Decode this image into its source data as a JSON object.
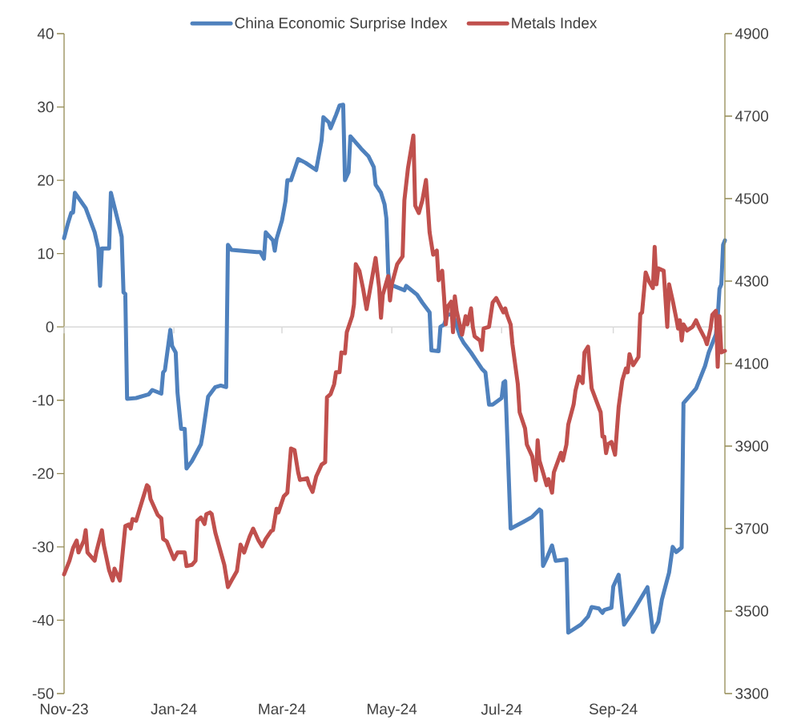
{
  "chart_data": {
    "type": "line",
    "legend": "top",
    "xlim": [
      "2023-11-01",
      "2024-11-02"
    ],
    "xticks": [
      {
        "value": "2023-11-01",
        "label": "Nov-23"
      },
      {
        "value": "2024-01-01",
        "label": "Jan-24"
      },
      {
        "value": "2024-03-01",
        "label": "Mar-24"
      },
      {
        "value": "2024-05-01",
        "label": "May-24"
      },
      {
        "value": "2024-07-01",
        "label": "Jul-24"
      },
      {
        "value": "2024-09-01",
        "label": "Sep-24"
      }
    ],
    "ylim": [
      -50,
      40
    ],
    "yticks": [
      -50,
      -40,
      -30,
      -20,
      -10,
      0,
      10,
      20,
      30,
      40
    ],
    "y2lim": [
      3300,
      4900
    ],
    "y2ticks": [
      3300,
      3500,
      3700,
      3900,
      4100,
      4300,
      4500,
      4700,
      4900
    ],
    "series": [
      {
        "name": "China Economic Surprise Index",
        "color": "#4f81bd",
        "x": [
          "2023-11-01",
          "2023-11-03",
          "2023-11-05",
          "2023-11-06",
          "2023-11-07",
          "2023-11-13",
          "2023-11-18",
          "2023-11-20",
          "2023-11-21",
          "2023-11-22",
          "2023-11-26",
          "2023-11-27",
          "2023-12-02",
          "2023-12-03",
          "2023-12-04",
          "2023-12-05",
          "2023-12-06",
          "2023-12-11",
          "2023-12-18",
          "2023-12-20",
          "2023-12-25",
          "2023-12-26",
          "2023-12-27",
          "2023-12-30",
          "2023-12-31",
          "2024-01-02",
          "2024-01-03",
          "2024-01-05",
          "2024-01-07",
          "2024-01-08",
          "2024-01-11",
          "2024-01-16",
          "2024-01-17",
          "2024-01-20",
          "2024-01-24",
          "2024-01-27",
          "2024-01-30",
          "2024-01-31",
          "2024-02-02",
          "2024-02-07",
          "2024-02-16",
          "2024-02-18",
          "2024-02-20",
          "2024-02-21",
          "2024-02-25",
          "2024-02-26",
          "2024-02-27",
          "2024-03-01",
          "2024-03-03",
          "2024-03-04",
          "2024-03-06",
          "2024-03-10",
          "2024-03-14",
          "2024-03-20",
          "2024-03-23",
          "2024-03-24",
          "2024-03-27",
          "2024-03-28",
          "2024-03-31",
          "2024-04-02",
          "2024-04-04",
          "2024-04-05",
          "2024-04-07",
          "2024-04-08",
          "2024-04-14",
          "2024-04-18",
          "2024-04-21",
          "2024-04-22",
          "2024-04-25",
          "2024-04-27",
          "2024-04-28",
          "2024-04-29",
          "2024-04-30",
          "2024-05-08",
          "2024-05-09",
          "2024-05-15",
          "2024-05-18",
          "2024-05-22",
          "2024-05-23",
          "2024-05-27",
          "2024-05-28",
          "2024-05-30",
          "2024-06-01",
          "2024-06-04",
          "2024-06-08",
          "2024-06-10",
          "2024-06-14",
          "2024-06-17",
          "2024-06-20",
          "2024-06-22",
          "2024-06-24",
          "2024-06-26",
          "2024-07-01",
          "2024-07-02",
          "2024-07-03",
          "2024-07-06",
          "2024-07-13",
          "2024-07-18",
          "2024-07-22",
          "2024-07-23",
          "2024-07-24",
          "2024-07-26",
          "2024-07-29",
          "2024-07-31",
          "2024-08-06",
          "2024-08-07",
          "2024-08-14",
          "2024-08-18",
          "2024-08-20",
          "2024-08-24",
          "2024-08-26",
          "2024-08-27",
          "2024-08-31",
          "2024-09-01",
          "2024-09-04",
          "2024-09-07",
          "2024-09-12",
          "2024-09-20",
          "2024-09-23",
          "2024-09-26",
          "2024-09-28",
          "2024-10-02",
          "2024-10-04",
          "2024-10-06",
          "2024-10-09",
          "2024-10-10",
          "2024-10-17",
          "2024-10-22",
          "2024-10-24",
          "2024-10-28",
          "2024-10-29",
          "2024-10-30",
          "2024-10-31",
          "2024-11-01",
          "2024-11-02"
        ],
        "values": [
          12.1,
          14.0,
          15.6,
          15.6,
          18.3,
          16.2,
          12.9,
          10.7,
          5.6,
          10.7,
          10.7,
          18.3,
          13.4,
          12.3,
          4.7,
          4.5,
          -9.8,
          -9.7,
          -9.2,
          -8.6,
          -9.1,
          -6.2,
          -5.9,
          -0.4,
          -2.6,
          -3.5,
          -9.0,
          -13.9,
          -13.9,
          -19.3,
          -18.3,
          -16.0,
          -14.6,
          -9.5,
          -8.2,
          -8.0,
          -8.2,
          11.2,
          10.5,
          10.4,
          10.2,
          10.2,
          9.3,
          12.9,
          11.8,
          10.4,
          12.0,
          14.5,
          17.2,
          20.0,
          20.0,
          22.9,
          22.4,
          21.4,
          25.4,
          28.6,
          27.9,
          27.1,
          28.9,
          30.2,
          30.3,
          20.0,
          21.1,
          26.0,
          24.3,
          23.3,
          21.8,
          19.4,
          18.3,
          16.7,
          14.8,
          7.4,
          5.8,
          5.0,
          5.6,
          4.4,
          3.3,
          2.0,
          -3.2,
          -3.3,
          0.0,
          0.3,
          1.7,
          1.7,
          -1.3,
          -2.2,
          -3.5,
          -4.6,
          -5.7,
          -6.2,
          -10.6,
          -10.6,
          -9.7,
          -7.6,
          -7.4,
          -27.5,
          -26.6,
          -25.9,
          -24.9,
          -25.1,
          -32.6,
          -31.6,
          -29.8,
          -31.9,
          -31.7,
          -41.7,
          -40.6,
          -39.5,
          -38.2,
          -38.4,
          -39.0,
          -38.6,
          -38.3,
          -35.4,
          -33.8,
          -40.6,
          -38.8,
          -35.5,
          -41.6,
          -40.2,
          -37.2,
          -33.5,
          -30.0,
          -30.7,
          -30.1,
          -10.4,
          -8.4,
          -5.3,
          -3.5,
          -1.0,
          1.3,
          5.2,
          5.8,
          11.2,
          11.8
        ]
      },
      {
        "name": "Metals Index",
        "color": "#c0504d",
        "axis": "y2",
        "x": [
          "2023-11-01",
          "2023-11-04",
          "2023-11-06",
          "2023-11-08",
          "2023-11-09",
          "2023-11-12",
          "2023-11-13",
          "2023-11-14",
          "2023-11-18",
          "2023-11-19",
          "2023-11-22",
          "2023-11-23",
          "2023-11-26",
          "2023-11-28",
          "2023-11-29",
          "2023-12-02",
          "2023-12-05",
          "2023-12-07",
          "2023-12-08",
          "2023-12-09",
          "2023-12-11",
          "2023-12-13",
          "2023-12-17",
          "2023-12-18",
          "2023-12-19",
          "2023-12-23",
          "2023-12-25",
          "2023-12-26",
          "2023-12-28",
          "2024-01-01",
          "2024-01-03",
          "2024-01-07",
          "2024-01-08",
          "2024-01-11",
          "2024-01-13",
          "2024-01-14",
          "2024-01-16",
          "2024-01-18",
          "2024-01-19",
          "2024-01-21",
          "2024-01-22",
          "2024-01-24",
          "2024-01-29",
          "2024-01-31",
          "2024-02-02",
          "2024-02-05",
          "2024-02-07",
          "2024-02-09",
          "2024-02-12",
          "2024-02-14",
          "2024-02-17",
          "2024-02-19",
          "2024-02-21",
          "2024-02-24",
          "2024-02-25",
          "2024-02-27",
          "2024-02-28",
          "2024-03-02",
          "2024-03-04",
          "2024-03-05",
          "2024-03-06",
          "2024-03-08",
          "2024-03-10",
          "2024-03-11",
          "2024-03-15",
          "2024-03-16",
          "2024-03-18",
          "2024-03-20",
          "2024-03-23",
          "2024-03-25",
          "2024-03-26",
          "2024-03-28",
          "2024-03-30",
          "2024-03-31",
          "2024-04-02",
          "2024-04-03",
          "2024-04-05",
          "2024-04-06",
          "2024-04-09",
          "2024-04-10",
          "2024-04-11",
          "2024-04-13",
          "2024-04-15",
          "2024-04-17",
          "2024-04-21",
          "2024-04-22",
          "2024-04-24",
          "2024-04-25",
          "2024-04-26",
          "2024-04-29",
          "2024-04-30",
          "2024-05-01",
          "2024-05-04",
          "2024-05-07",
          "2024-05-08",
          "2024-05-10",
          "2024-05-13",
          "2024-05-14",
          "2024-05-16",
          "2024-05-18",
          "2024-05-20",
          "2024-05-22",
          "2024-05-24",
          "2024-05-26",
          "2024-05-27",
          "2024-05-29",
          "2024-05-30",
          "2024-05-31",
          "2024-06-01",
          "2024-06-03",
          "2024-06-04",
          "2024-06-05",
          "2024-06-06",
          "2024-06-09",
          "2024-06-11",
          "2024-06-12",
          "2024-06-14",
          "2024-06-15",
          "2024-06-16",
          "2024-06-19",
          "2024-06-20",
          "2024-06-21",
          "2024-06-24",
          "2024-06-26",
          "2024-06-28",
          "2024-07-02",
          "2024-07-03",
          "2024-07-04",
          "2024-07-06",
          "2024-07-07",
          "2024-07-10",
          "2024-07-11",
          "2024-07-14",
          "2024-07-15",
          "2024-07-18",
          "2024-07-20",
          "2024-07-21",
          "2024-07-22",
          "2024-07-24",
          "2024-07-26",
          "2024-07-27",
          "2024-07-29",
          "2024-07-30",
          "2024-08-03",
          "2024-08-04",
          "2024-08-06",
          "2024-08-07",
          "2024-08-10",
          "2024-08-11",
          "2024-08-13",
          "2024-08-15",
          "2024-08-16",
          "2024-08-18",
          "2024-08-20",
          "2024-08-23",
          "2024-08-25",
          "2024-08-26",
          "2024-08-27",
          "2024-08-28",
          "2024-08-29",
          "2024-08-31",
          "2024-09-02",
          "2024-09-04",
          "2024-09-06",
          "2024-09-08",
          "2024-09-09",
          "2024-09-10",
          "2024-09-12",
          "2024-09-15",
          "2024-09-16",
          "2024-09-17",
          "2024-09-19",
          "2024-09-21",
          "2024-09-23",
          "2024-09-24",
          "2024-09-25",
          "2024-09-26",
          "2024-09-29",
          "2024-10-01",
          "2024-10-02",
          "2024-10-04",
          "2024-10-06",
          "2024-10-07",
          "2024-10-08",
          "2024-10-09",
          "2024-10-10",
          "2024-10-12",
          "2024-10-15",
          "2024-10-17",
          "2024-10-19",
          "2024-10-22",
          "2024-10-23",
          "2024-10-25",
          "2024-10-26",
          "2024-10-28",
          "2024-10-29",
          "2024-10-30",
          "2024-10-31",
          "2024-11-02"
        ],
        "values": [
          3589,
          3622,
          3653,
          3671,
          3642,
          3671,
          3696,
          3642,
          3622,
          3645,
          3696,
          3661,
          3599,
          3574,
          3603,
          3574,
          3706,
          3710,
          3700,
          3723,
          3719,
          3748,
          3805,
          3801,
          3772,
          3733,
          3725,
          3675,
          3669,
          3626,
          3642,
          3642,
          3609,
          3612,
          3622,
          3719,
          3727,
          3711,
          3735,
          3739,
          3735,
          3690,
          3612,
          3558,
          3574,
          3597,
          3661,
          3642,
          3680,
          3700,
          3671,
          3657,
          3675,
          3694,
          3696,
          3748,
          3739,
          3778,
          3787,
          3840,
          3894,
          3890,
          3836,
          3818,
          3822,
          3807,
          3789,
          3826,
          3855,
          3861,
          4018,
          4026,
          4050,
          4079,
          4079,
          4127,
          4125,
          4176,
          4215,
          4244,
          4341,
          4325,
          4283,
          4232,
          4331,
          4356,
          4283,
          4211,
          4267,
          4312,
          4253,
          4292,
          4341,
          4360,
          4496,
          4574,
          4653,
          4483,
          4465,
          4496,
          4545,
          4418,
          4364,
          4374,
          4302,
          4325,
          4263,
          4195,
          4238,
          4250,
          4176,
          4263,
          4228,
          4170,
          4215,
          4195,
          4234,
          4189,
          4166,
          4156,
          4133,
          4185,
          4189,
          4248,
          4259,
          4224,
          4234,
          4218,
          4195,
          4147,
          4050,
          3982,
          3943,
          3904,
          3875,
          3817,
          3914,
          3865,
          3836,
          3805,
          3820,
          3787,
          3836,
          3884,
          3865,
          3904,
          3952,
          4001,
          4034,
          4069,
          4053,
          4127,
          4141,
          4040,
          4005,
          3982,
          3923,
          3923,
          3883,
          3904,
          3910,
          3879,
          3995,
          4059,
          4088,
          4079,
          4123,
          4096,
          4116,
          4220,
          4224,
          4321,
          4298,
          4283,
          4383,
          4292,
          4331,
          4325,
          4189,
          4292,
          4253,
          4209,
          4185,
          4205,
          4156,
          4195,
          4180,
          4189,
          4205,
          4185,
          4160,
          4147,
          4185,
          4218,
          4228,
          4092,
          4215,
          4127,
          4131
        ]
      }
    ]
  }
}
